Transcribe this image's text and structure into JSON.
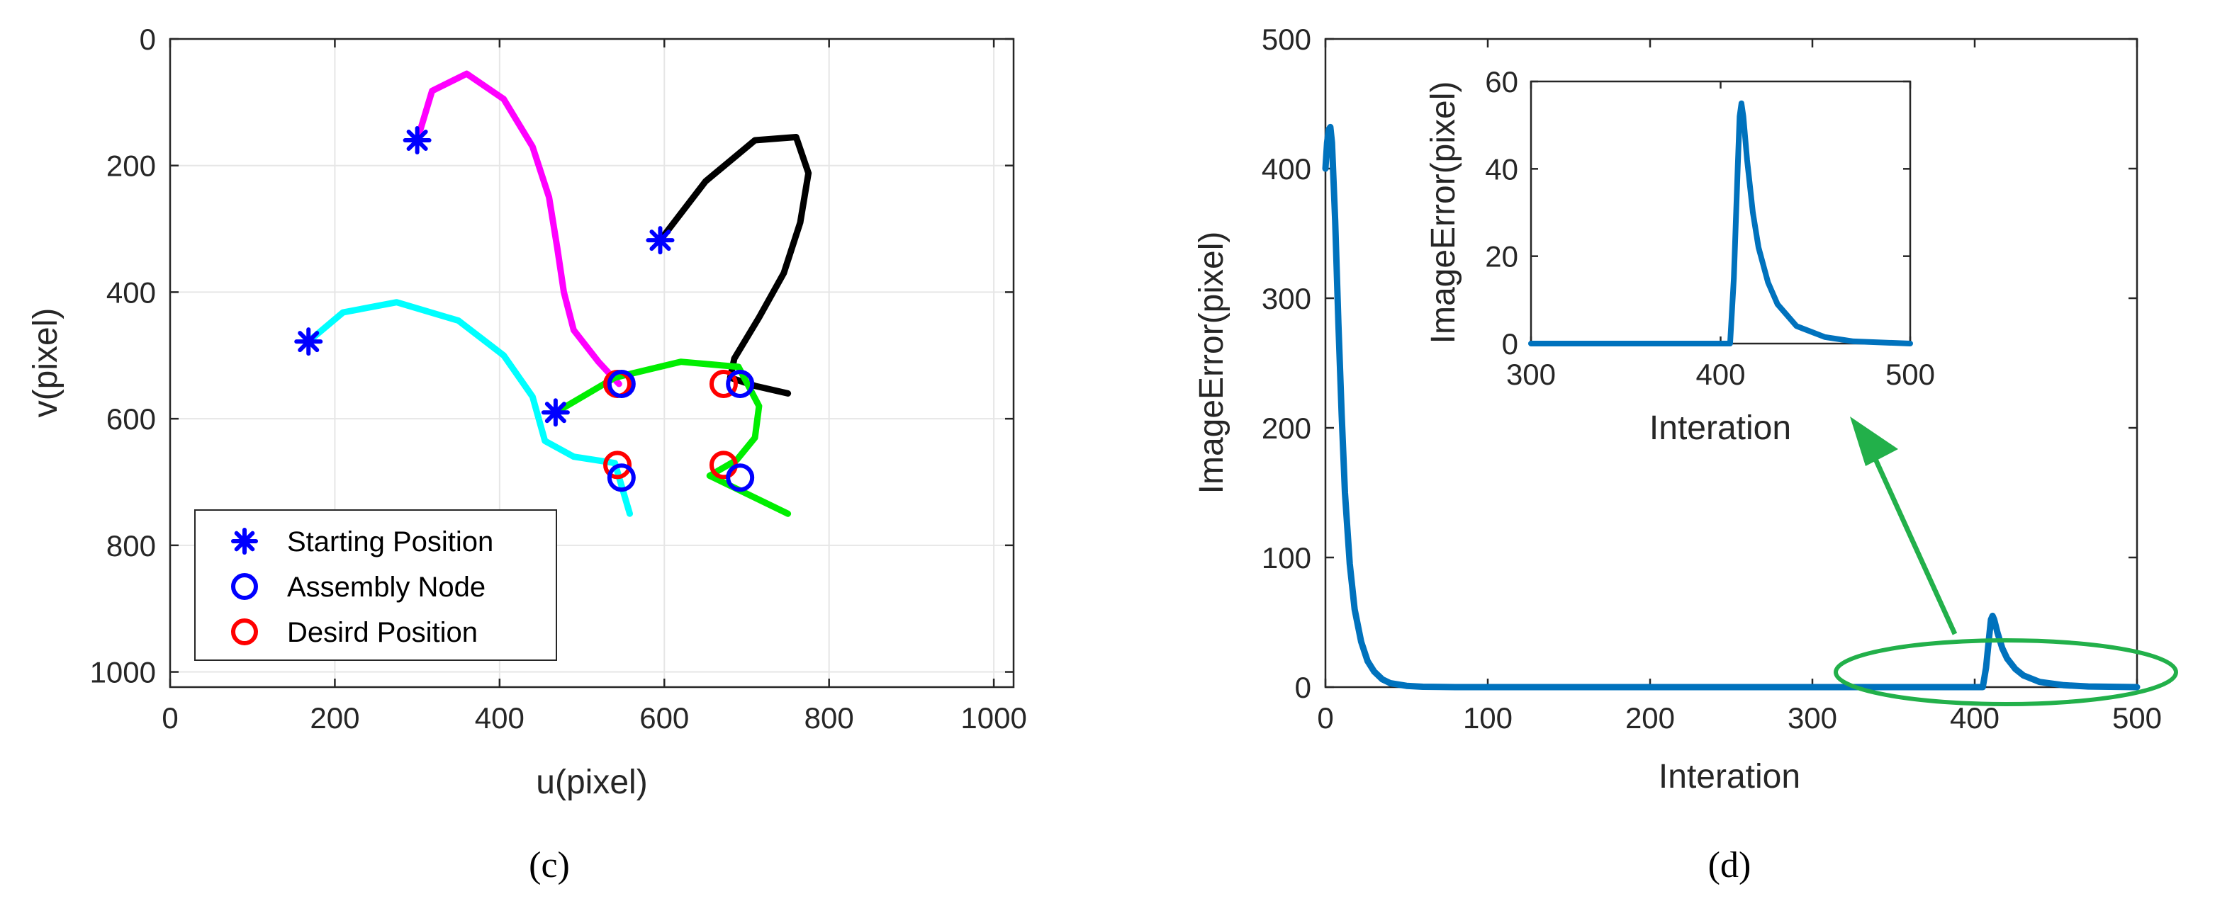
{
  "chart_data": [
    {
      "id": "c",
      "panel_label": "(c)",
      "type": "line",
      "xlabel": "u(pixel)",
      "ylabel": "v(pixel)",
      "xlim": [
        0,
        1024
      ],
      "ylim": [
        0,
        1024
      ],
      "y_reversed": true,
      "xticks": [
        0,
        200,
        400,
        600,
        800,
        1000
      ],
      "yticks": [
        0,
        200,
        400,
        600,
        800,
        1000
      ],
      "grid": true,
      "legend": {
        "placement": "bottom-left",
        "entries": [
          {
            "label": "Starting Position",
            "marker": "asterisk",
            "color": "#0000ff"
          },
          {
            "label": "Assembly Node",
            "marker": "circle",
            "color": "#0000ff"
          },
          {
            "label": "Desird Position",
            "marker": "circle",
            "color": "#ff0000"
          }
        ]
      },
      "series": [
        {
          "color": "#ff00ff",
          "points": [
            [
              300,
              160
            ],
            [
              318,
              82
            ],
            [
              360,
              55
            ],
            [
              405,
              95
            ],
            [
              440,
              170
            ],
            [
              460,
              250
            ],
            [
              470,
              330
            ],
            [
              478,
              400
            ],
            [
              490,
              460
            ],
            [
              520,
              510
            ],
            [
              545,
              545
            ]
          ]
        },
        {
          "color": "#000000",
          "points": [
            [
              595,
              318
            ],
            [
              650,
              225
            ],
            [
              710,
              160
            ],
            [
              760,
              155
            ],
            [
              775,
              212
            ],
            [
              765,
              290
            ],
            [
              745,
              370
            ],
            [
              715,
              440
            ],
            [
              685,
              505
            ],
            [
              680,
              535
            ],
            [
              710,
              548
            ],
            [
              750,
              560
            ]
          ]
        },
        {
          "color": "#00ffff",
          "points": [
            [
              168,
              478
            ],
            [
              210,
              432
            ],
            [
              275,
              416
            ],
            [
              350,
              445
            ],
            [
              405,
              500
            ],
            [
              440,
              565
            ],
            [
              455,
              635
            ],
            [
              490,
              660
            ],
            [
              540,
              670
            ],
            [
              558,
              750
            ]
          ]
        },
        {
          "color": "#00ee00",
          "points": [
            [
              468,
              590
            ],
            [
              540,
              535
            ],
            [
              620,
              510
            ],
            [
              690,
              518
            ],
            [
              715,
              580
            ],
            [
              710,
              630
            ],
            [
              688,
              665
            ],
            [
              655,
              690
            ],
            [
              750,
              750
            ]
          ]
        }
      ],
      "starting_positions": [
        [
          300,
          160
        ],
        [
          595,
          318
        ],
        [
          168,
          478
        ],
        [
          468,
          590
        ]
      ],
      "assembly_nodes": [
        [
          548,
          545
        ],
        [
          692,
          545
        ],
        [
          548,
          693
        ],
        [
          692,
          693
        ]
      ],
      "desired_positions": [
        [
          543,
          545
        ],
        [
          672,
          545
        ],
        [
          543,
          673
        ],
        [
          672,
          673
        ]
      ]
    },
    {
      "id": "d",
      "panel_label": "(d)",
      "type": "line",
      "xlabel": "Interation",
      "ylabel": "ImageError(pixel)",
      "xlim": [
        0,
        500
      ],
      "ylim": [
        0,
        500
      ],
      "xticks": [
        0,
        100,
        200,
        300,
        400,
        500
      ],
      "yticks": [
        0,
        100,
        200,
        300,
        400,
        500
      ],
      "grid": false,
      "series": [
        {
          "color": "#0072bd",
          "points": [
            [
              0,
              400
            ],
            [
              1,
              420
            ],
            [
              2,
              430
            ],
            [
              3,
              432
            ],
            [
              4,
              420
            ],
            [
              6,
              360
            ],
            [
              8,
              280
            ],
            [
              10,
              210
            ],
            [
              12,
              150
            ],
            [
              15,
              95
            ],
            [
              18,
              60
            ],
            [
              22,
              35
            ],
            [
              26,
              20
            ],
            [
              30,
              12
            ],
            [
              35,
              6
            ],
            [
              40,
              3
            ],
            [
              50,
              1
            ],
            [
              60,
              0.3
            ],
            [
              80,
              0
            ],
            [
              405,
              0
            ],
            [
              407,
              15
            ],
            [
              409,
              40
            ],
            [
              410,
              52
            ],
            [
              411,
              55
            ],
            [
              412,
              52
            ],
            [
              414,
              42
            ],
            [
              417,
              30
            ],
            [
              420,
              22
            ],
            [
              425,
              14
            ],
            [
              430,
              9
            ],
            [
              440,
              4
            ],
            [
              455,
              1.5
            ],
            [
              470,
              0.5
            ],
            [
              500,
              0
            ]
          ]
        }
      ],
      "inset": {
        "xlabel": "Interation",
        "ylabel": "ImageError(pixel)",
        "xlim": [
          300,
          500
        ],
        "ylim": [
          0,
          60
        ],
        "xticks": [
          300,
          400,
          500
        ],
        "yticks": [
          0,
          20,
          40,
          60
        ]
      },
      "annotation": {
        "type": "ellipse-with-arrow",
        "color": "#22b04a",
        "target": "inset"
      }
    }
  ]
}
